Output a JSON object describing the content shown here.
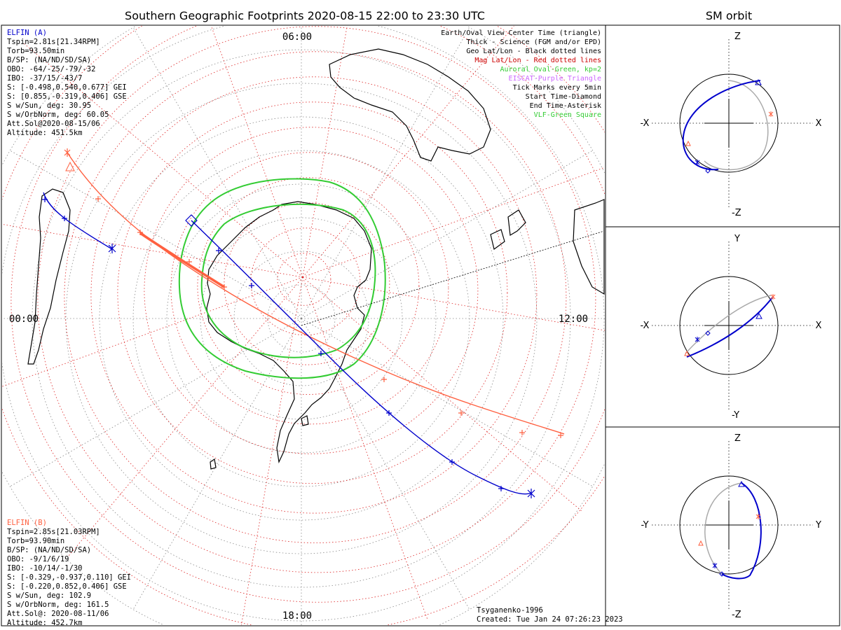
{
  "title": "Southern Geographic Footprints 2020-08-15 22:00 to 23:30 UTC",
  "orbit_title": "SM orbit",
  "time_labels": {
    "top": "06:00",
    "left": "00:00",
    "right": "12:00",
    "bottom": "18:00"
  },
  "elfin_a": {
    "color": "#0000cc",
    "lines": [
      "ELFIN (A)",
      "Tspin=2.81s[21.34RPM]",
      "Torb=93.50min",
      "B/SP: (NA/ND/SD/SA)",
      "OBO: -64/-25/-79/-32",
      "IBO: -37/15/-43/7",
      "S: [-0.498,0.540,0.677] GEI",
      "S: [0.855,-0.319,0.406] GSE",
      "S w/Sun, deg: 30.95",
      "S w/OrbNorm, deg: 60.05",
      "Att.Sol@2020-08-15/06",
      "Altitude: 451.5km"
    ]
  },
  "elfin_b": {
    "color": "#ff6040",
    "lines": [
      "ELFIN (B)",
      "Tspin=2.85s[21.03RPM]",
      "Torb=93.90min",
      "B/SP: (NA/ND/SD/SA)",
      "OBO: -9/1/6/19",
      "IBO: -10/14/-1/30",
      "S: [-0.329,-0.937,0.110] GEI",
      "S: [-0.220,0.852,0.406] GSE",
      "S w/Sun, deg: 102.9",
      "S w/OrbNorm, deg: 161.5",
      "Att.Sol@: 2020-08-11/06",
      "Altitude: 452.7km"
    ]
  },
  "legend": [
    {
      "text": "Earth/Oval View Center Time (triangle)",
      "color": "#000000"
    },
    {
      "text": "Thick - Science (FGM and/or EPD)",
      "color": "#000000"
    },
    {
      "text": "Geo Lat/Lon - Black dotted lines",
      "color": "#000000"
    },
    {
      "text": "Mag Lat/Lon - Red dotted lines",
      "color": "#cc0000"
    },
    {
      "text": "Auroral Oval-Green, kp=2",
      "color": "#33cc33"
    },
    {
      "text": "EISCAT-Purple Triangle",
      "color": "#cc66ff"
    },
    {
      "text": "Tick Marks every 5min",
      "color": "#000000"
    },
    {
      "text": "Start Time-Diamond",
      "color": "#000000"
    },
    {
      "text": "End Time-Asterisk",
      "color": "#000000"
    },
    {
      "text": "VLF-Green Square",
      "color": "#33cc33"
    }
  ],
  "footer": {
    "model": "Tsyganenko-1996",
    "created": "Created: Tue Jan 24 07:26:23 2023"
  },
  "orbit_panels": [
    {
      "name": "xz",
      "top": "Z",
      "bottom": "-Z",
      "left": "-X",
      "right": "X"
    },
    {
      "name": "xy",
      "top": "Y",
      "bottom": "-Y",
      "left": "-X",
      "right": "X"
    },
    {
      "name": "yz",
      "top": "Z",
      "bottom": "-Z",
      "left": "-Y",
      "right": "Y"
    }
  ],
  "colors": {
    "elfin_a_track": "#0000cc",
    "elfin_b_track": "#ff6040",
    "auroral_oval": "#33cc33",
    "mag_grid": "#cc0000",
    "geo_grid": "#000000",
    "orbit_gray": "#aaaaaa"
  }
}
